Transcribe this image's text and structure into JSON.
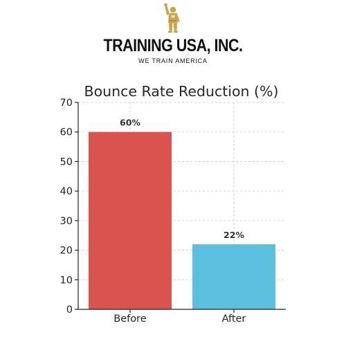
{
  "logo": {
    "name": "TRAINING USA, INC.",
    "tagline": "WE TRAIN AMERICA",
    "figure_icon": "waving-person-figure-icon",
    "figure_color": "#C9A74E"
  },
  "colors": {
    "before_bar": "#D9534F",
    "after_bar": "#5BC0DE",
    "grid": "#C8C8C8",
    "axis": "#222222"
  },
  "chart_data": {
    "type": "bar",
    "title": "Bounce Rate Reduction (%)",
    "categories": [
      "Before",
      "After"
    ],
    "values": [
      60,
      22
    ],
    "data_labels": [
      "60%",
      "22%"
    ],
    "xlabel": "",
    "ylabel": "",
    "ylim": [
      0,
      70
    ],
    "yticks": [
      0,
      10,
      20,
      30,
      40,
      50,
      60,
      70
    ],
    "grid": true,
    "legend": "none"
  }
}
